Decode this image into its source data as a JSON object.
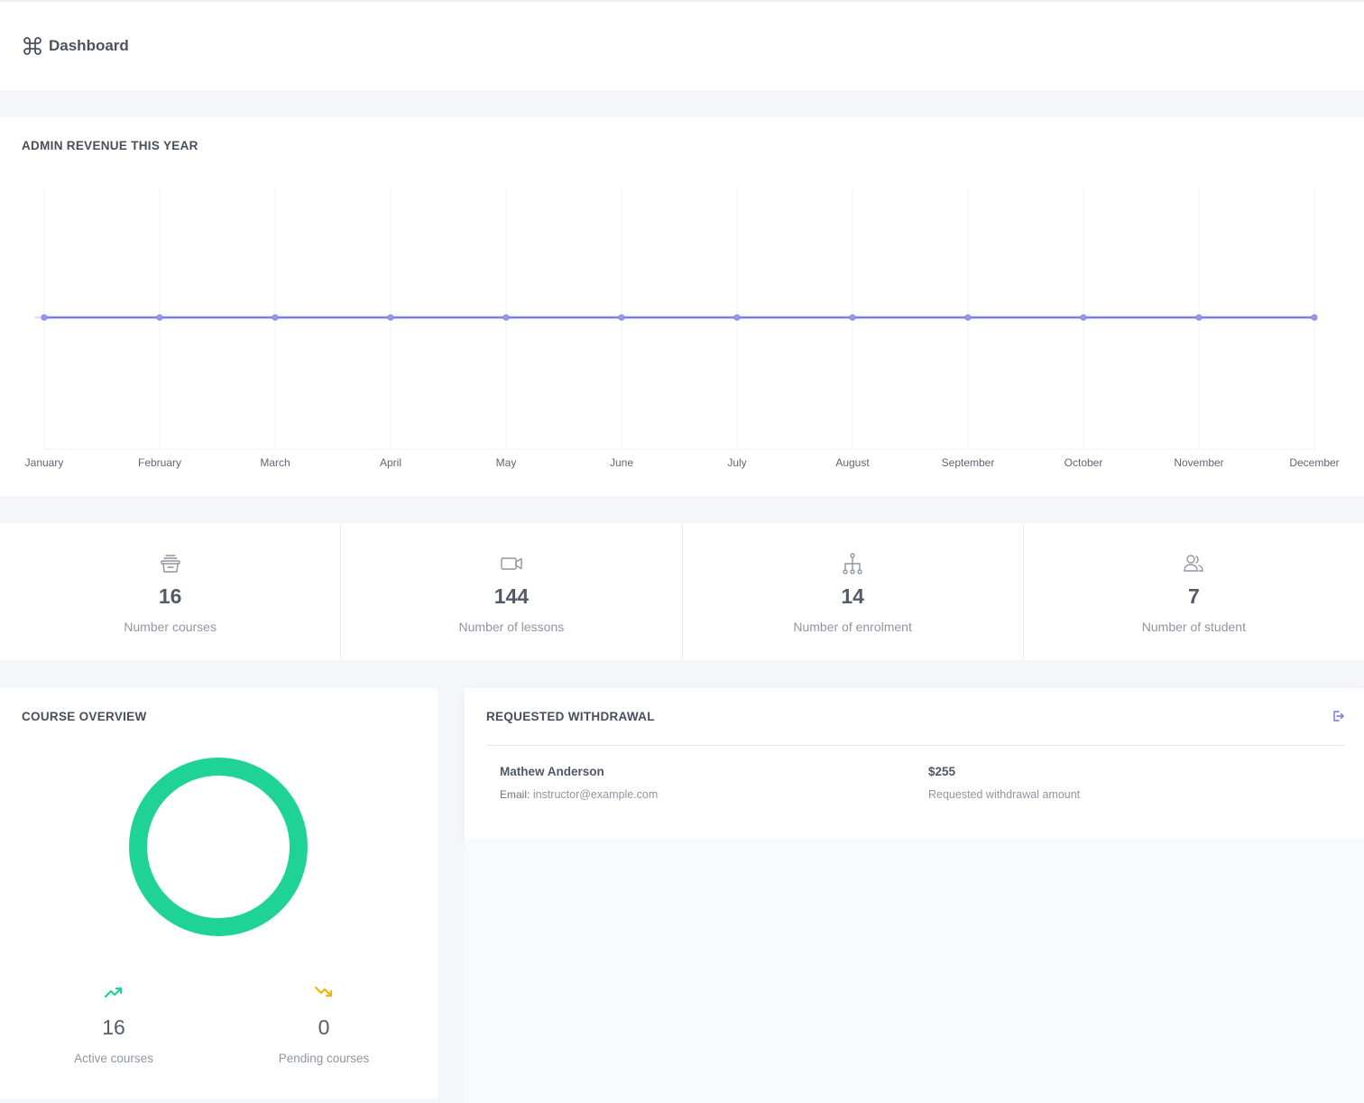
{
  "header": {
    "title": "Dashboard",
    "icon": "command-icon"
  },
  "revenue": {
    "title": "ADMIN REVENUE THIS YEAR",
    "chart_data": {
      "type": "line",
      "categories": [
        "January",
        "February",
        "March",
        "April",
        "May",
        "June",
        "July",
        "August",
        "September",
        "October",
        "November",
        "December"
      ],
      "series": [
        {
          "values": [
            0,
            0,
            0,
            0,
            0,
            0,
            0,
            0,
            0,
            0,
            0,
            0
          ]
        }
      ],
      "title": "ADMIN REVENUE THIS YEAR",
      "xlabel": "",
      "ylabel": "",
      "grid": "vertical",
      "color": "#7c7cf0"
    }
  },
  "stats": [
    {
      "icon": "courses-box-icon",
      "value": "16",
      "label": "Number courses"
    },
    {
      "icon": "video-camera-icon",
      "value": "144",
      "label": "Number of lessons"
    },
    {
      "icon": "hierarchy-icon",
      "value": "14",
      "label": "Number of enrolment"
    },
    {
      "icon": "users-icon",
      "value": "7",
      "label": "Number of student"
    }
  ],
  "overview": {
    "title": "COURSE OVERVIEW",
    "donut_color": "#1fd396",
    "active": {
      "icon": "trending-up-icon",
      "value": "16",
      "label": "Active courses",
      "color": "#1fd396"
    },
    "pending": {
      "icon": "trending-down-icon",
      "value": "0",
      "label": "Pending courses",
      "color": "#f0b312"
    }
  },
  "withdrawal": {
    "title": "REQUESTED WITHDRAWAL",
    "name": "Mathew Anderson",
    "email_key": "Email:",
    "email": "instructor@example.com",
    "amount": "$255",
    "amount_label": "Requested withdrawal amount",
    "accent": "#6c6ff0"
  }
}
